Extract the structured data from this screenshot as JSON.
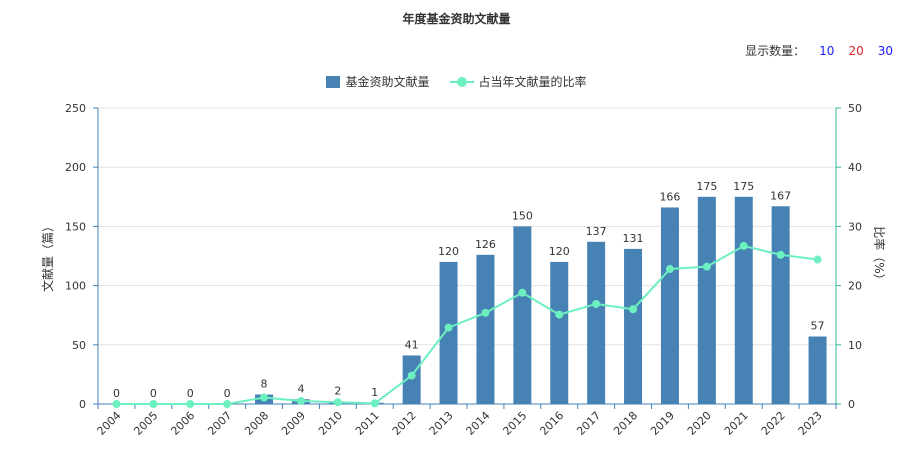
{
  "title": "年度基金资助文献量",
  "display_count": {
    "label": "显示数量：",
    "options": [
      {
        "label": "10",
        "color": "#1a1aff"
      },
      {
        "label": "20",
        "color": "#e0242a"
      },
      {
        "label": "30",
        "color": "#1a1aff"
      }
    ]
  },
  "colors": {
    "bar": "#4682b4",
    "line": "#6cf0c0",
    "axis_left": "#4682b4",
    "axis_right": "#2fb89a"
  },
  "chart_data": {
    "type": "bar",
    "categories": [
      "2004",
      "2005",
      "2006",
      "2007",
      "2008",
      "2009",
      "2010",
      "2011",
      "2012",
      "2013",
      "2014",
      "2015",
      "2016",
      "2017",
      "2018",
      "2019",
      "2020",
      "2021",
      "2022",
      "2023"
    ],
    "series": [
      {
        "name": "基金资助文献量",
        "type": "bar",
        "axis": "left",
        "values": [
          0,
          0,
          0,
          0,
          8,
          4,
          2,
          1,
          41,
          120,
          126,
          150,
          120,
          137,
          131,
          166,
          175,
          175,
          167,
          57
        ]
      },
      {
        "name": "占当年文献量的比率",
        "type": "line",
        "axis": "right",
        "values": [
          0,
          0,
          0,
          0,
          1.1,
          0.5,
          0.3,
          0.1,
          4.8,
          12.9,
          15.4,
          18.8,
          15.1,
          16.9,
          16.0,
          22.8,
          23.2,
          26.7,
          25.2,
          24.4
        ]
      }
    ],
    "ylabel_left": "文献量（篇）",
    "ylabel_right": "比率（%）",
    "ylim_left": [
      0,
      250
    ],
    "yticks_left": [
      0,
      50,
      100,
      150,
      200,
      250
    ],
    "ylim_right": [
      0,
      50
    ],
    "yticks_right": [
      0,
      10,
      20,
      30,
      40,
      50
    ],
    "grid": true,
    "legend_position": "top-center"
  }
}
